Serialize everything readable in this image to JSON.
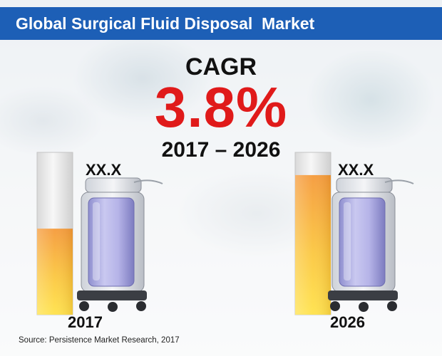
{
  "title": "Global Surgical Fluid Disposal  Market",
  "cagr": {
    "label": "CAGR",
    "value": "3.8%",
    "period": "2017 – 2026"
  },
  "source": "Source: Persistence Market Research, 2017",
  "colors": {
    "title_band": "#1d5fb6",
    "cagr_value": "#e01a1a",
    "bar_top": "#f59a3a",
    "bar_bottom": "#ffe24a"
  },
  "icons": [
    "fluid-disposal-cart-icon"
  ],
  "chart_data": {
    "type": "bar",
    "categories": [
      "2017",
      "2026"
    ],
    "values": [
      0.53,
      0.86
    ],
    "value_labels": [
      "XX.X",
      "XX.X"
    ],
    "ylim": [
      0,
      1
    ],
    "grid": false
  }
}
